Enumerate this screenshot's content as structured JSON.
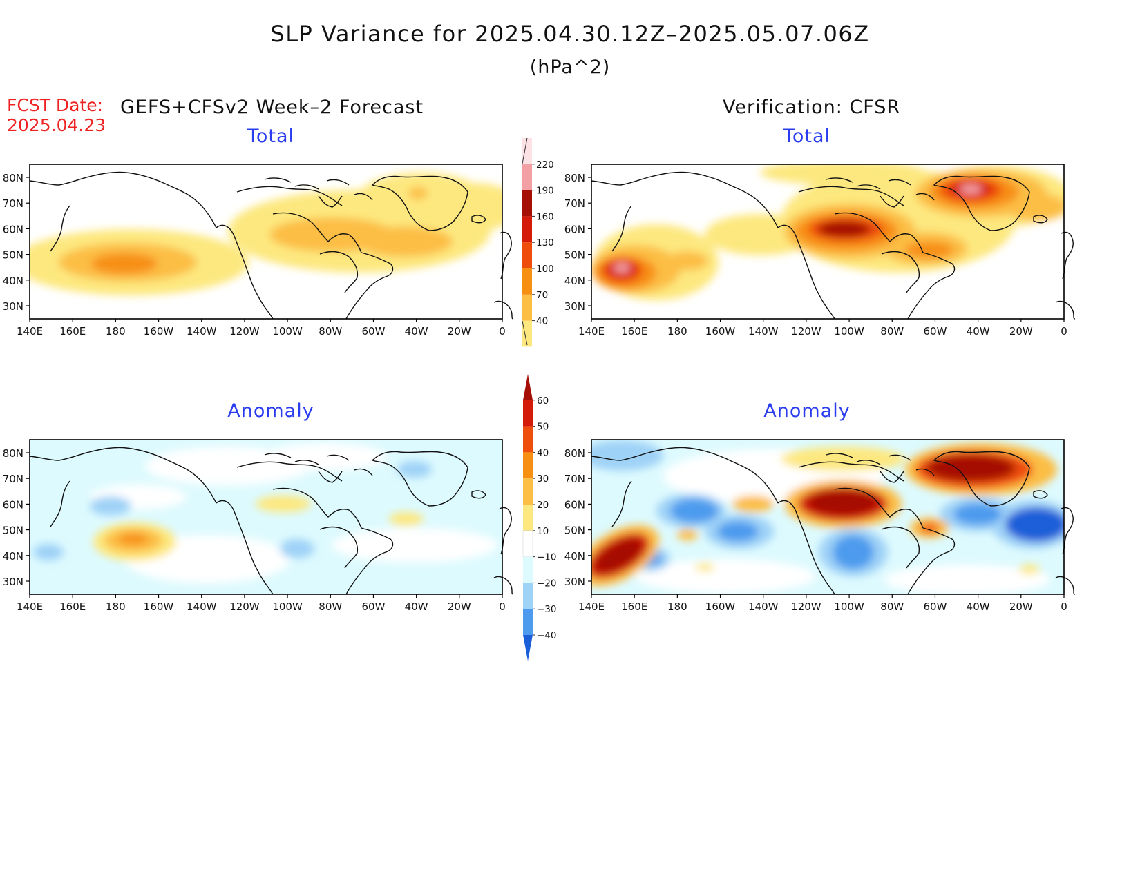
{
  "title": "SLP Variance for 2025.04.30.12Z–2025.05.07.06Z",
  "units": "(hPa^2)",
  "fcst_label": "FCST Date:",
  "fcst_date": "2025.04.23",
  "forecast_title": "GEFS+CFSv2 Week–2 Forecast",
  "verification_title": "Verification: CFSR",
  "panels": [
    {
      "id": "forecast-total",
      "label": "Total"
    },
    {
      "id": "verification-total",
      "label": "Total"
    },
    {
      "id": "forecast-anomaly",
      "label": "Anomaly"
    },
    {
      "id": "verification-anomaly",
      "label": "Anomaly"
    }
  ],
  "lat_labels": [
    "80N",
    "70N",
    "60N",
    "50N",
    "40N",
    "30N"
  ],
  "lon_labels": [
    "140E",
    "160E",
    "180",
    "160W",
    "140W",
    "120W",
    "100W",
    "80W",
    "60W",
    "40W",
    "20W",
    "0"
  ],
  "total_colorbar": {
    "levels": [
      "40",
      "70",
      "100",
      "130",
      "160",
      "190",
      "220"
    ],
    "colors": [
      "#fde87f",
      "#fcbe44",
      "#f78f12",
      "#ef4d0c",
      "#d41b0a",
      "#a50f06",
      "#f3a0a5",
      "#fde2e5"
    ]
  },
  "anomaly_colorbar": {
    "levels": [
      "60",
      "50",
      "40",
      "30",
      "20",
      "10",
      "−10",
      "−20",
      "−30",
      "−40"
    ],
    "colors": [
      "#a50f06",
      "#d41b0a",
      "#ef4d0c",
      "#f78f12",
      "#fcbe44",
      "#fde87f",
      "#ffffff",
      "#ddfafe",
      "#9fd2f7",
      "#4d9bee",
      "#1a5fd8"
    ]
  }
}
